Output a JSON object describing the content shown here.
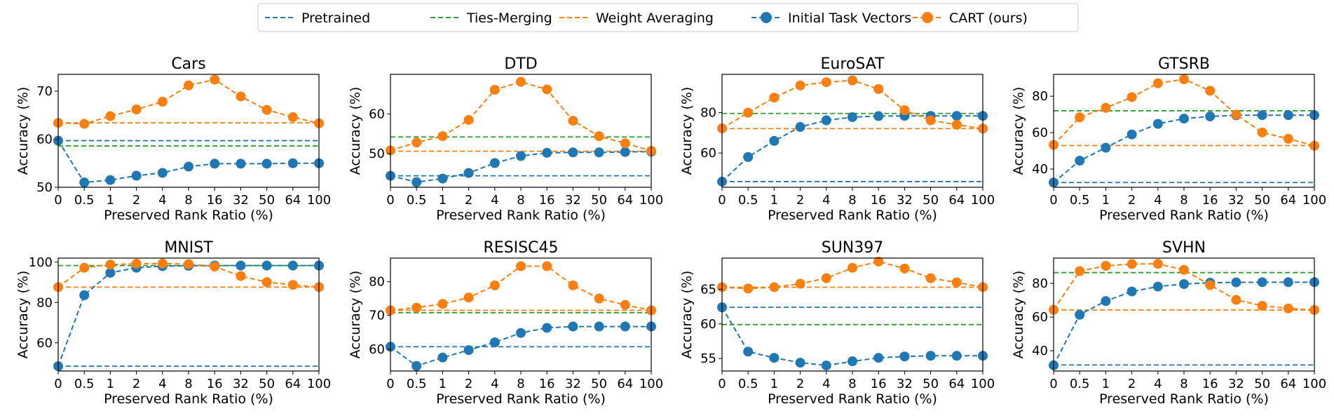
{
  "legend": {
    "placement": "top-center",
    "entries": [
      {
        "key": "pretrained",
        "label": "Pretrained",
        "style": "dashed",
        "color": "#1f77b4"
      },
      {
        "key": "ties",
        "label": "Ties-Merging",
        "style": "dashed",
        "color": "#2ca02c"
      },
      {
        "key": "avg",
        "label": "Weight Averaging",
        "style": "dashed",
        "color": "#ff7f0e"
      },
      {
        "key": "init",
        "label": "Initial Task Vectors",
        "style": "dashed-marker",
        "color": "#1f77b4"
      },
      {
        "key": "cart",
        "label": "CART (ours)",
        "style": "dashed-marker",
        "color": "#ff7f0e"
      }
    ]
  },
  "chart_data": [
    {
      "type": "line",
      "title": "Cars",
      "xlabel": "Preserved Rank Ratio (%)",
      "ylabel": "Accuracy (%)",
      "categories": [
        "0",
        "0.5",
        "1",
        "2",
        "4",
        "8",
        "16",
        "32",
        "50",
        "64",
        "100"
      ],
      "ylim": [
        50,
        73.5
      ],
      "yticks": [
        50,
        60,
        70
      ],
      "hlines": {
        "pretrained": 59.7,
        "ties": 58.6,
        "avg": 63.4
      },
      "series": [
        {
          "name": "Initial Task Vectors",
          "values": [
            59.7,
            51.0,
            51.5,
            52.4,
            53.0,
            54.3,
            54.9,
            54.9,
            54.9,
            55.0,
            55.0
          ]
        },
        {
          "name": "CART (ours)",
          "values": [
            63.4,
            63.2,
            64.8,
            66.2,
            67.8,
            71.2,
            72.4,
            68.9,
            66.1,
            64.6,
            63.3
          ]
        }
      ]
    },
    {
      "type": "line",
      "title": "DTD",
      "xlabel": "Preserved Rank Ratio (%)",
      "ylabel": "Accuracy (%)",
      "categories": [
        "0",
        "0.5",
        "1",
        "2",
        "4",
        "8",
        "16",
        "32",
        "50",
        "64",
        "100"
      ],
      "ylim": [
        41.5,
        70
      ],
      "yticks": [
        50,
        60
      ],
      "hlines": {
        "pretrained": 44.4,
        "ties": 54.2,
        "avg": 50.6
      },
      "series": [
        {
          "name": "Initial Task Vectors",
          "values": [
            44.4,
            42.8,
            43.7,
            45.1,
            47.6,
            49.4,
            50.2,
            50.3,
            50.3,
            50.4,
            50.5
          ]
        },
        {
          "name": "CART (ours)",
          "values": [
            50.8,
            52.8,
            54.4,
            58.5,
            66.1,
            68.1,
            66.2,
            58.3,
            54.4,
            52.6,
            50.7
          ]
        }
      ]
    },
    {
      "type": "line",
      "title": "EuroSAT",
      "xlabel": "Preserved Rank Ratio (%)",
      "ylabel": "Accuracy (%)",
      "categories": [
        "0",
        "0.5",
        "1",
        "2",
        "4",
        "8",
        "16",
        "32",
        "50",
        "64",
        "100"
      ],
      "ylim": [
        43,
        99
      ],
      "yticks": [
        60,
        80
      ],
      "hlines": {
        "pretrained": 45.8,
        "ties": 79.6,
        "avg": 72.1
      },
      "series": [
        {
          "name": "Initial Task Vectors",
          "values": [
            45.8,
            58.0,
            66.0,
            72.9,
            76.2,
            77.8,
            78.3,
            78.4,
            78.4,
            78.4,
            78.4
          ]
        },
        {
          "name": "CART (ours)",
          "values": [
            72.2,
            80.0,
            87.5,
            93.5,
            95.1,
            96.0,
            91.7,
            81.2,
            76.2,
            74.0,
            72.1
          ]
        }
      ]
    },
    {
      "type": "line",
      "title": "GTSRB",
      "xlabel": "Preserved Rank Ratio (%)",
      "ylabel": "Accuracy (%)",
      "categories": [
        "0",
        "0.5",
        "1",
        "2",
        "4",
        "8",
        "16",
        "32",
        "50",
        "64",
        "100"
      ],
      "ylim": [
        30,
        92
      ],
      "yticks": [
        40,
        60,
        80
      ],
      "hlines": {
        "pretrained": 32.6,
        "ties": 72.0,
        "avg": 52.9
      },
      "series": [
        {
          "name": "Initial Task Vectors",
          "values": [
            32.6,
            44.6,
            51.7,
            59.0,
            64.8,
            67.7,
            68.9,
            69.5,
            69.6,
            69.6,
            69.6
          ]
        },
        {
          "name": "CART (ours)",
          "values": [
            53.3,
            68.4,
            73.6,
            79.5,
            87.1,
            89.3,
            83.0,
            69.9,
            60.1,
            56.6,
            52.8
          ]
        }
      ]
    },
    {
      "type": "line",
      "title": "MNIST",
      "xlabel": "Preserved Rank Ratio (%)",
      "ylabel": "Accuracy (%)",
      "categories": [
        "0",
        "0.5",
        "1",
        "2",
        "4",
        "8",
        "16",
        "32",
        "50",
        "64",
        "100"
      ],
      "ylim": [
        46,
        102
      ],
      "yticks": [
        60,
        80,
        100
      ],
      "hlines": {
        "pretrained": 48.4,
        "ties": 98.3,
        "avg": 87.6
      },
      "series": [
        {
          "name": "Initial Task Vectors",
          "values": [
            48.4,
            83.6,
            94.7,
            97.2,
            98.0,
            98.2,
            98.3,
            98.3,
            98.3,
            98.3,
            98.3
          ]
        },
        {
          "name": "CART (ours)",
          "values": [
            87.6,
            97.2,
            98.8,
            99.2,
            99.3,
            99.0,
            97.8,
            93.1,
            90.1,
            88.7,
            87.6
          ]
        }
      ]
    },
    {
      "type": "line",
      "title": "RESISC45",
      "xlabel": "Preserved Rank Ratio (%)",
      "ylabel": "Accuracy (%)",
      "categories": [
        "0",
        "0.5",
        "1",
        "2",
        "4",
        "8",
        "16",
        "32",
        "50",
        "64",
        "100"
      ],
      "ylim": [
        53.5,
        87
      ],
      "yticks": [
        60,
        70,
        80
      ],
      "hlines": {
        "pretrained": 60.7,
        "ties": 70.8,
        "avg": 71.5
      },
      "series": [
        {
          "name": "Initial Task Vectors",
          "values": [
            60.7,
            55.0,
            57.5,
            59.7,
            62.0,
            64.8,
            66.3,
            66.7,
            66.7,
            66.7,
            66.7
          ]
        },
        {
          "name": "CART (ours)",
          "values": [
            71.5,
            72.3,
            73.4,
            75.3,
            78.9,
            84.6,
            84.6,
            78.9,
            75.0,
            73.1,
            71.5
          ]
        }
      ]
    },
    {
      "type": "line",
      "title": "SUN397",
      "xlabel": "Preserved Rank Ratio (%)",
      "ylabel": "Accuracy (%)",
      "categories": [
        "0",
        "0.5",
        "1",
        "2",
        "4",
        "8",
        "16",
        "32",
        "50",
        "64",
        "100"
      ],
      "ylim": [
        53.2,
        69.5
      ],
      "yticks": [
        55,
        60,
        65
      ],
      "hlines": {
        "pretrained": 62.4,
        "ties": 59.9,
        "avg": 65.3
      },
      "series": [
        {
          "name": "Initial Task Vectors",
          "values": [
            62.4,
            56.0,
            55.1,
            54.4,
            54.0,
            54.6,
            55.1,
            55.3,
            55.4,
            55.4,
            55.4
          ]
        },
        {
          "name": "CART (ours)",
          "values": [
            65.3,
            65.1,
            65.3,
            65.8,
            66.6,
            68.1,
            69.0,
            68.0,
            66.6,
            66.0,
            65.3
          ]
        }
      ]
    },
    {
      "type": "line",
      "title": "SVHN",
      "xlabel": "Preserved Rank Ratio (%)",
      "ylabel": "Accuracy (%)",
      "categories": [
        "0",
        "0.5",
        "1",
        "2",
        "4",
        "8",
        "16",
        "32",
        "50",
        "64",
        "100"
      ],
      "ylim": [
        28,
        95
      ],
      "yticks": [
        40,
        60,
        80
      ],
      "hlines": {
        "pretrained": 31.6,
        "ties": 86.4,
        "avg": 64.2
      },
      "series": [
        {
          "name": "Initial Task Vectors",
          "values": [
            31.4,
            61.4,
            69.5,
            75.2,
            78.1,
            79.6,
            80.4,
            80.6,
            80.7,
            80.7,
            80.7
          ]
        },
        {
          "name": "CART (ours)",
          "values": [
            64.3,
            87.3,
            90.4,
            91.5,
            91.6,
            88.0,
            79.0,
            70.2,
            66.7,
            65.1,
            64.2
          ]
        }
      ]
    }
  ]
}
